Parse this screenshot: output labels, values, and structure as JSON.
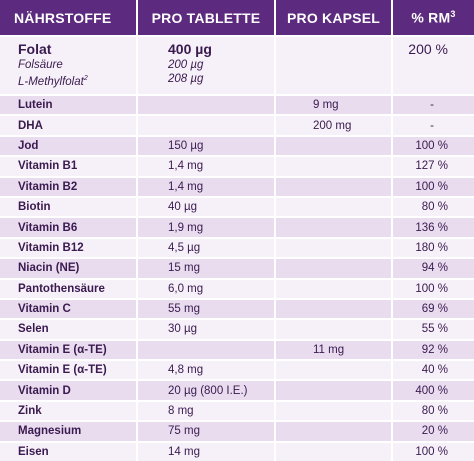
{
  "headers": {
    "col1": "NÄHRSTOFFE",
    "col2": "PRO TABLETTE",
    "col3": "PRO KAPSEL",
    "col4_prefix": "% RM",
    "col4_sup": "3"
  },
  "folat": {
    "name": "Folat",
    "sub1": "Folsäure",
    "sub2": "L-Methylfolat",
    "sub2_sup": "2",
    "tablet": "400 µg",
    "tablet_sub1": "200 µg",
    "tablet_sub2": "208 µg",
    "capsule": "",
    "rm": "200 %"
  },
  "rows": [
    {
      "name": "Lutein",
      "tablet": "",
      "capsule": "9 mg",
      "rm": "-"
    },
    {
      "name": "DHA",
      "tablet": "",
      "capsule": "200 mg",
      "rm": "-"
    },
    {
      "name": "Jod",
      "tablet": "150 µg",
      "capsule": "",
      "rm": "100 %"
    },
    {
      "name": "Vitamin B1",
      "tablet": "1,4 mg",
      "capsule": "",
      "rm": "127 %"
    },
    {
      "name": "Vitamin B2",
      "tablet": "1,4 mg",
      "capsule": "",
      "rm": "100 %"
    },
    {
      "name": "Biotin",
      "tablet": "40 µg",
      "capsule": "",
      "rm": "80 %"
    },
    {
      "name": "Vitamin B6",
      "tablet": "1,9 mg",
      "capsule": "",
      "rm": "136 %"
    },
    {
      "name": "Vitamin B12",
      "tablet": "4,5 µg",
      "capsule": "",
      "rm": "180 %"
    },
    {
      "name": "Niacin (NE)",
      "tablet": "15 mg",
      "capsule": "",
      "rm": "94 %"
    },
    {
      "name": "Pantothensäure",
      "tablet": "6,0 mg",
      "capsule": "",
      "rm": "100 %"
    },
    {
      "name": "Vitamin C",
      "tablet": "55 mg",
      "capsule": "",
      "rm": "69 %"
    },
    {
      "name": "Selen",
      "tablet": "30 µg",
      "capsule": "",
      "rm": "55 %"
    },
    {
      "name": "Vitamin E (α-TE)",
      "tablet": "",
      "capsule": "11 mg",
      "rm": "92 %"
    },
    {
      "name": "Vitamin E (α-TE)",
      "tablet": "4,8 mg",
      "capsule": "",
      "rm": "40 %"
    },
    {
      "name": "Vitamin D",
      "tablet": "20 µg (800 I.E.)",
      "capsule": "",
      "rm": "400 %"
    },
    {
      "name": "Zink",
      "tablet": "8 mg",
      "capsule": "",
      "rm": "80 %"
    },
    {
      "name": "Magnesium",
      "tablet": "75 mg",
      "capsule": "",
      "rm": "20 %"
    },
    {
      "name": "Eisen",
      "tablet": "14 mg",
      "capsule": "",
      "rm": "100 %"
    }
  ]
}
